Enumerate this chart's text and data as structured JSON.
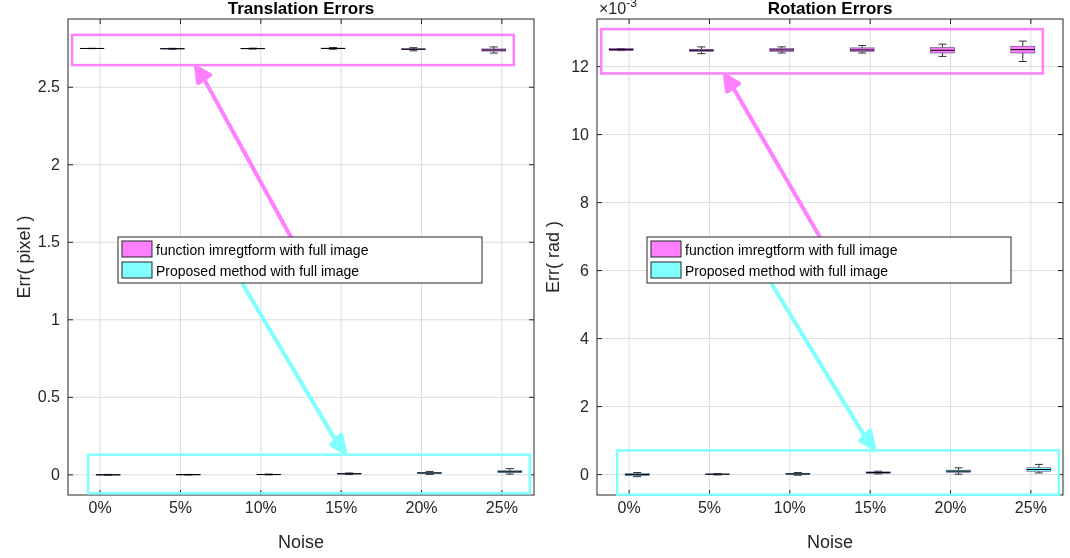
{
  "chart_data": [
    {
      "type": "box",
      "title": "Translation Errors",
      "xlabel": "Noise",
      "ylabel": "Err( pixel )",
      "categories": [
        "0%",
        "5%",
        "10%",
        "15%",
        "20%",
        "25%"
      ],
      "ylim": [
        -0.13,
        2.94
      ],
      "yticks": [
        0,
        0.5,
        1,
        1.5,
        2,
        2.5
      ],
      "grid": true,
      "legend": "center",
      "series": [
        {
          "name": "function imregtform with full image",
          "color": "#ff80ff",
          "boxes": [
            {
              "low": 2.749,
              "q1": 2.7495,
              "median": 2.75,
              "q3": 2.7505,
              "high": 2.751
            },
            {
              "low": 2.745,
              "q1": 2.747,
              "median": 2.748,
              "q3": 2.749,
              "high": 2.751
            },
            {
              "low": 2.746,
              "q1": 2.748,
              "median": 2.749,
              "q3": 2.75,
              "high": 2.752
            },
            {
              "low": 2.745,
              "q1": 2.748,
              "median": 2.75,
              "q3": 2.752,
              "high": 2.756
            },
            {
              "low": 2.735,
              "q1": 2.742,
              "median": 2.745,
              "q3": 2.748,
              "high": 2.755
            },
            {
              "low": 2.72,
              "q1": 2.733,
              "median": 2.74,
              "q3": 2.747,
              "high": 2.76
            }
          ]
        },
        {
          "name": "Proposed method with full image",
          "color": "#80ffff",
          "boxes": [
            {
              "low": -0.003,
              "q1": -0.0015,
              "median": 0,
              "q3": 0.0015,
              "high": 0.003
            },
            {
              "low": -0.001,
              "q1": 0,
              "median": 0.001,
              "q3": 0.002,
              "high": 0.003
            },
            {
              "low": 0,
              "q1": 0.001,
              "median": 0.002,
              "q3": 0.003,
              "high": 0.005
            },
            {
              "low": 0.002,
              "q1": 0.005,
              "median": 0.007,
              "q3": 0.009,
              "high": 0.012
            },
            {
              "low": 0.003,
              "q1": 0.008,
              "median": 0.012,
              "q3": 0.016,
              "high": 0.022
            },
            {
              "low": 0.005,
              "q1": 0.014,
              "median": 0.02,
              "q3": 0.026,
              "high": 0.04
            }
          ]
        }
      ]
    },
    {
      "type": "box",
      "title": "Rotation Errors",
      "xlabel": "Noise",
      "ylabel": "Err( rad )",
      "annotations": [
        "×10$^{-3}$"
      ],
      "categories": [
        "0%",
        "5%",
        "10%",
        "15%",
        "20%",
        "25%"
      ],
      "ylim": [
        -0.6,
        13.4
      ],
      "yticks": [
        0,
        2,
        4,
        6,
        8,
        10,
        12
      ],
      "grid": true,
      "legend": "center",
      "series": [
        {
          "name": "function imregtform with full image",
          "color": "#ff80ff",
          "boxes": [
            {
              "low": 12.47,
              "q1": 12.47,
              "median": 12.5,
              "q3": 12.53,
              "high": 12.53
            },
            {
              "low": 12.38,
              "q1": 12.45,
              "median": 12.48,
              "q3": 12.51,
              "high": 12.58
            },
            {
              "low": 12.4,
              "q1": 12.45,
              "median": 12.49,
              "q3": 12.53,
              "high": 12.58
            },
            {
              "low": 12.4,
              "q1": 12.45,
              "median": 12.49,
              "q3": 12.55,
              "high": 12.62
            },
            {
              "low": 12.3,
              "q1": 12.4,
              "median": 12.48,
              "q3": 12.56,
              "high": 12.66
            },
            {
              "low": 12.15,
              "q1": 12.4,
              "median": 12.5,
              "q3": 12.6,
              "high": 12.75
            }
          ]
        },
        {
          "name": "Proposed method with full image",
          "color": "#80ffff",
          "boxes": [
            {
              "low": -0.06,
              "q1": -0.03,
              "median": 0,
              "q3": 0.03,
              "high": 0.06
            },
            {
              "low": -0.01,
              "q1": 0,
              "median": 0.01,
              "q3": 0.02,
              "high": 0.03
            },
            {
              "low": -0.02,
              "q1": 0,
              "median": 0.02,
              "q3": 0.04,
              "high": 0.06
            },
            {
              "low": 0.02,
              "q1": 0.04,
              "median": 0.06,
              "q3": 0.08,
              "high": 0.1
            },
            {
              "low": 0.01,
              "q1": 0.07,
              "median": 0.1,
              "q3": 0.13,
              "high": 0.2
            },
            {
              "low": 0.05,
              "q1": 0.1,
              "median": 0.15,
              "q3": 0.2,
              "high": 0.3
            }
          ]
        }
      ]
    }
  ]
}
